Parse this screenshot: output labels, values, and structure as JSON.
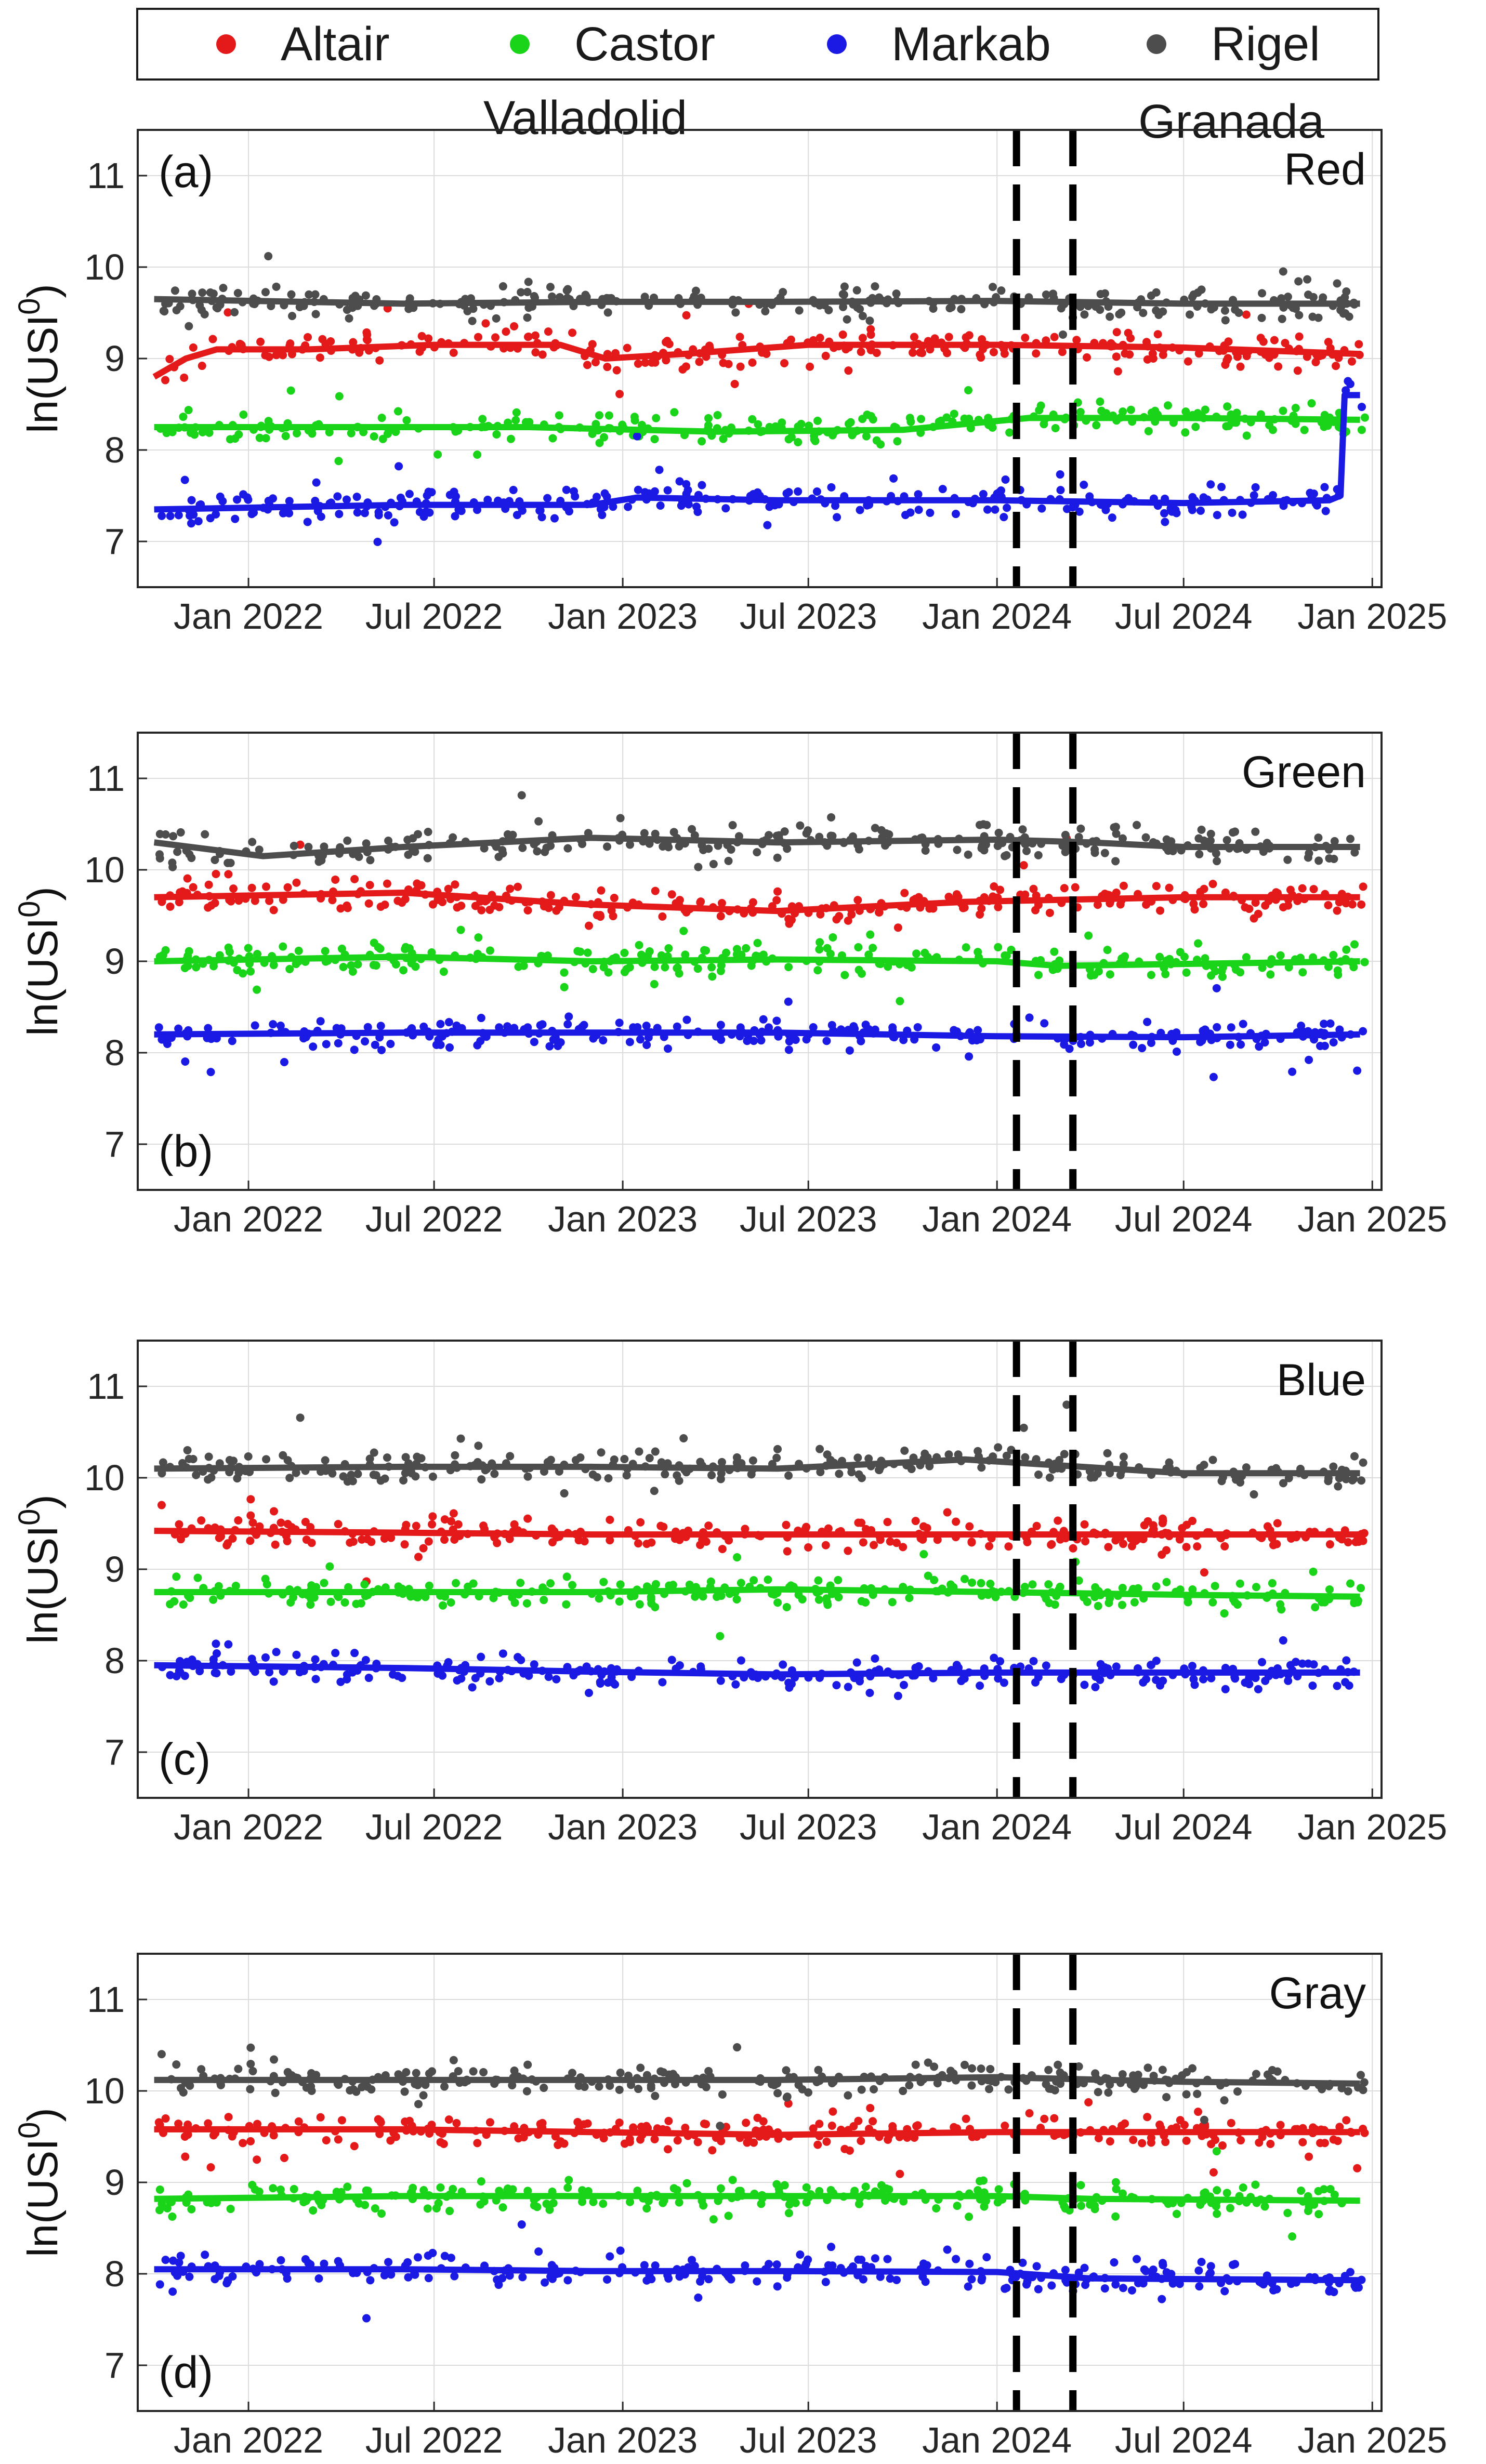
{
  "legend": {
    "items": [
      {
        "label": "Altair",
        "color": "#e41a1a"
      },
      {
        "label": "Castor",
        "color": "#1ad41a"
      },
      {
        "label": "Markab",
        "color": "#1a1ae4"
      },
      {
        "label": "Rigel",
        "color": "#4d4d4d"
      }
    ]
  },
  "sites": {
    "left": "Valladolid",
    "right": "Granada"
  },
  "chart_data": [
    {
      "type": "line",
      "panel": "(a)",
      "band": "Red",
      "ylabel": "ln(USI0)",
      "ylim": [
        6.5,
        11.5
      ],
      "yticks": [
        7,
        8,
        9,
        10,
        11
      ],
      "xlim": [
        "2021-09-15",
        "2025-01-10"
      ],
      "xticks": [
        "Jan 2022",
        "Jul 2022",
        "Jan 2023",
        "Jul 2023",
        "Jan 2024",
        "Jul 2024",
        "Jan 2025"
      ],
      "dashed_lines": [
        "2024-01-20",
        "2024-03-15"
      ],
      "grid": true,
      "series": [
        {
          "name": "Altair",
          "points": [
            [
              "2021-10-01",
              8.8
            ],
            [
              "2021-11-01",
              9.0
            ],
            [
              "2021-12-01",
              9.1
            ],
            [
              "2022-03-01",
              9.1
            ],
            [
              "2022-07-01",
              9.15
            ],
            [
              "2022-11-01",
              9.15
            ],
            [
              "2022-12-15",
              9.0
            ],
            [
              "2023-03-01",
              9.05
            ],
            [
              "2023-07-01",
              9.15
            ],
            [
              "2023-10-01",
              9.15
            ],
            [
              "2024-01-01",
              9.15
            ],
            [
              "2024-07-01",
              9.12
            ],
            [
              "2024-12-20",
              9.05
            ]
          ]
        },
        {
          "name": "Castor",
          "points": [
            [
              "2021-10-01",
              8.25
            ],
            [
              "2022-04-01",
              8.25
            ],
            [
              "2022-10-01",
              8.25
            ],
            [
              "2023-04-01",
              8.2
            ],
            [
              "2023-10-01",
              8.22
            ],
            [
              "2024-02-01",
              8.35
            ],
            [
              "2024-07-01",
              8.35
            ],
            [
              "2024-12-20",
              8.33
            ]
          ]
        },
        {
          "name": "Markab",
          "points": [
            [
              "2021-10-01",
              7.35
            ],
            [
              "2022-06-01",
              7.4
            ],
            [
              "2022-12-01",
              7.4
            ],
            [
              "2023-01-15",
              7.48
            ],
            [
              "2023-06-01",
              7.45
            ],
            [
              "2024-01-01",
              7.45
            ],
            [
              "2024-07-01",
              7.42
            ],
            [
              "2024-11-20",
              7.45
            ],
            [
              "2024-12-01",
              7.5
            ],
            [
              "2024-12-05",
              8.6
            ],
            [
              "2024-12-20",
              8.6
            ]
          ]
        },
        {
          "name": "Rigel",
          "points": [
            [
              "2021-10-01",
              9.65
            ],
            [
              "2022-06-01",
              9.6
            ],
            [
              "2022-12-01",
              9.62
            ],
            [
              "2023-06-01",
              9.62
            ],
            [
              "2024-01-01",
              9.63
            ],
            [
              "2024-07-01",
              9.6
            ],
            [
              "2024-12-20",
              9.6
            ]
          ]
        }
      ]
    },
    {
      "type": "line",
      "panel": "(b)",
      "band": "Green",
      "ylabel": "ln(USI0)",
      "ylim": [
        6.5,
        11.5
      ],
      "yticks": [
        7,
        8,
        9,
        10,
        11
      ],
      "xlim": [
        "2021-09-15",
        "2025-01-10"
      ],
      "xticks": [
        "Jan 2022",
        "Jul 2022",
        "Jan 2023",
        "Jul 2023",
        "Jan 2024",
        "Jul 2024",
        "Jan 2025"
      ],
      "dashed_lines": [
        "2024-01-20",
        "2024-03-15"
      ],
      "grid": true,
      "series": [
        {
          "name": "Altair",
          "points": [
            [
              "2021-10-01",
              9.7
            ],
            [
              "2022-06-01",
              9.75
            ],
            [
              "2022-12-01",
              9.62
            ],
            [
              "2023-06-01",
              9.55
            ],
            [
              "2023-12-01",
              9.65
            ],
            [
              "2024-07-01",
              9.7
            ],
            [
              "2024-12-20",
              9.7
            ]
          ]
        },
        {
          "name": "Castor",
          "points": [
            [
              "2021-10-01",
              9.0
            ],
            [
              "2022-06-01",
              9.05
            ],
            [
              "2022-12-01",
              9.0
            ],
            [
              "2023-06-01",
              9.02
            ],
            [
              "2024-01-01",
              9.0
            ],
            [
              "2024-03-01",
              8.95
            ],
            [
              "2024-12-20",
              9.0
            ]
          ]
        },
        {
          "name": "Markab",
          "points": [
            [
              "2021-10-01",
              8.2
            ],
            [
              "2022-06-01",
              8.22
            ],
            [
              "2022-12-01",
              8.22
            ],
            [
              "2023-06-01",
              8.22
            ],
            [
              "2024-01-01",
              8.18
            ],
            [
              "2024-07-01",
              8.17
            ],
            [
              "2024-12-20",
              8.2
            ]
          ]
        },
        {
          "name": "Rigel",
          "points": [
            [
              "2021-10-01",
              10.3
            ],
            [
              "2022-01-15",
              10.15
            ],
            [
              "2022-06-01",
              10.25
            ],
            [
              "2022-12-01",
              10.35
            ],
            [
              "2023-06-01",
              10.3
            ],
            [
              "2024-01-01",
              10.33
            ],
            [
              "2024-04-01",
              10.3
            ],
            [
              "2024-07-01",
              10.25
            ],
            [
              "2024-12-20",
              10.25
            ]
          ]
        }
      ]
    },
    {
      "type": "line",
      "panel": "(c)",
      "band": "Blue",
      "ylabel": "ln(USI0)",
      "ylim": [
        6.5,
        11.5
      ],
      "yticks": [
        7,
        8,
        9,
        10,
        11
      ],
      "xlim": [
        "2021-09-15",
        "2025-01-10"
      ],
      "xticks": [
        "Jan 2022",
        "Jul 2022",
        "Jan 2023",
        "Jul 2023",
        "Jan 2024",
        "Jul 2024",
        "Jan 2025"
      ],
      "dashed_lines": [
        "2024-01-20",
        "2024-03-15"
      ],
      "grid": true,
      "series": [
        {
          "name": "Altair",
          "points": [
            [
              "2021-10-01",
              9.42
            ],
            [
              "2022-06-01",
              9.4
            ],
            [
              "2022-12-01",
              9.38
            ],
            [
              "2023-06-01",
              9.38
            ],
            [
              "2024-01-01",
              9.38
            ],
            [
              "2024-07-01",
              9.38
            ],
            [
              "2024-12-20",
              9.38
            ]
          ]
        },
        {
          "name": "Castor",
          "points": [
            [
              "2021-10-01",
              8.75
            ],
            [
              "2022-06-01",
              8.75
            ],
            [
              "2022-12-01",
              8.75
            ],
            [
              "2023-06-01",
              8.78
            ],
            [
              "2024-01-01",
              8.75
            ],
            [
              "2024-07-01",
              8.72
            ],
            [
              "2024-12-20",
              8.7
            ]
          ]
        },
        {
          "name": "Markab",
          "points": [
            [
              "2021-10-01",
              7.95
            ],
            [
              "2022-06-01",
              7.92
            ],
            [
              "2022-12-01",
              7.88
            ],
            [
              "2023-06-01",
              7.85
            ],
            [
              "2024-01-01",
              7.87
            ],
            [
              "2024-07-01",
              7.87
            ],
            [
              "2024-12-20",
              7.87
            ]
          ]
        },
        {
          "name": "Rigel",
          "points": [
            [
              "2021-10-01",
              10.1
            ],
            [
              "2022-06-01",
              10.12
            ],
            [
              "2022-12-01",
              10.12
            ],
            [
              "2023-06-01",
              10.1
            ],
            [
              "2023-12-01",
              10.2
            ],
            [
              "2024-07-01",
              10.05
            ],
            [
              "2024-12-20",
              10.05
            ]
          ]
        }
      ]
    },
    {
      "type": "line",
      "panel": "(d)",
      "band": "Gray",
      "ylabel": "ln(USI0)",
      "ylim": [
        6.5,
        11.5
      ],
      "yticks": [
        7,
        8,
        9,
        10,
        11
      ],
      "xlim": [
        "2021-09-15",
        "2025-01-10"
      ],
      "xticks": [
        "Jan 2022",
        "Jul 2022",
        "Jan 2023",
        "Jul 2023",
        "Jan 2024",
        "Jul 2024",
        "Jan 2025"
      ],
      "dashed_lines": [
        "2024-01-20",
        "2024-03-15"
      ],
      "grid": true,
      "series": [
        {
          "name": "Altair",
          "points": [
            [
              "2021-10-01",
              9.58
            ],
            [
              "2022-06-01",
              9.58
            ],
            [
              "2022-12-01",
              9.55
            ],
            [
              "2023-06-01",
              9.52
            ],
            [
              "2024-01-01",
              9.55
            ],
            [
              "2024-07-01",
              9.55
            ],
            [
              "2024-12-20",
              9.55
            ]
          ]
        },
        {
          "name": "Castor",
          "points": [
            [
              "2021-10-01",
              8.82
            ],
            [
              "2022-06-01",
              8.85
            ],
            [
              "2022-12-01",
              8.85
            ],
            [
              "2023-06-01",
              8.85
            ],
            [
              "2024-01-01",
              8.85
            ],
            [
              "2024-04-01",
              8.82
            ],
            [
              "2024-12-20",
              8.8
            ]
          ]
        },
        {
          "name": "Markab",
          "points": [
            [
              "2021-10-01",
              8.05
            ],
            [
              "2022-06-01",
              8.05
            ],
            [
              "2022-12-01",
              8.03
            ],
            [
              "2023-06-01",
              8.03
            ],
            [
              "2024-01-01",
              8.02
            ],
            [
              "2024-04-01",
              7.95
            ],
            [
              "2024-12-20",
              7.93
            ]
          ]
        },
        {
          "name": "Rigel",
          "points": [
            [
              "2021-10-01",
              10.12
            ],
            [
              "2022-06-01",
              10.12
            ],
            [
              "2022-12-01",
              10.12
            ],
            [
              "2023-06-01",
              10.12
            ],
            [
              "2024-01-01",
              10.15
            ],
            [
              "2024-07-01",
              10.1
            ],
            [
              "2024-12-20",
              10.08
            ]
          ]
        }
      ]
    }
  ]
}
